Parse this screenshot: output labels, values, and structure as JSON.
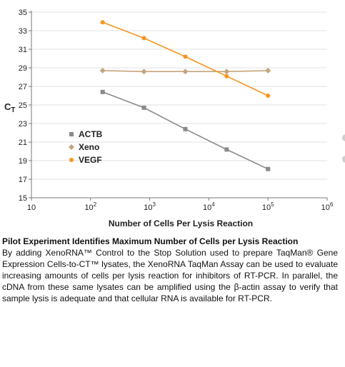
{
  "chart_data": {
    "type": "line",
    "title": "",
    "xlabel": "Number of Cells Per Lysis Reaction",
    "ylabel": "CT",
    "ylabel_main": "C",
    "ylabel_sub": "T",
    "xscale": "log",
    "xlim": [
      10,
      1000000
    ],
    "ylim": [
      15,
      35
    ],
    "x_ticks": [
      {
        "value": 10,
        "base": "10",
        "exp": ""
      },
      {
        "value": 100,
        "base": "10",
        "exp": "2"
      },
      {
        "value": 1000,
        "base": "10",
        "exp": "3"
      },
      {
        "value": 10000,
        "base": "10",
        "exp": "4"
      },
      {
        "value": 100000,
        "base": "10",
        "exp": "5"
      },
      {
        "value": 1000000,
        "base": "10",
        "exp": "6"
      }
    ],
    "y_ticks": [
      15,
      17,
      19,
      21,
      23,
      25,
      27,
      29,
      31,
      33,
      35
    ],
    "grid": true,
    "legend_position": "left-center",
    "series": [
      {
        "name": "ACTB",
        "color": "#8a8a8a",
        "marker": "square",
        "x": [
          160,
          800,
          4000,
          20000,
          100000
        ],
        "y": [
          26.4,
          24.7,
          22.4,
          20.2,
          18.1
        ]
      },
      {
        "name": "Xeno",
        "color": "#c4a47c",
        "marker": "diamond",
        "x": [
          160,
          800,
          4000,
          20000,
          100000
        ],
        "y": [
          28.7,
          28.6,
          28.6,
          28.6,
          28.7
        ]
      },
      {
        "name": "VEGF",
        "color": "#f7941d",
        "marker": "circle",
        "x": [
          160,
          800,
          4000,
          20000,
          100000
        ],
        "y": [
          33.9,
          32.2,
          30.2,
          28.1,
          26.0
        ]
      }
    ]
  },
  "caption": {
    "title": "Pilot Experiment Identifies Maximum Number of Cells per Lysis Reaction",
    "body": "By adding XenoRNA™ Control to the Stop Solution used to prepare TaqMan® Gene Expression Cells-to-CT™ lysates, the XenoRNA TaqMan Assay can be used to evaluate increasing amounts of cells per lysis reaction for inhibitors of RT-PCR. In parallel, the cDNA from these same lysates can be amplified using the β-actin assay to verify that sample lysis is adequate and that cellular RNA is available for RT-PCR."
  }
}
